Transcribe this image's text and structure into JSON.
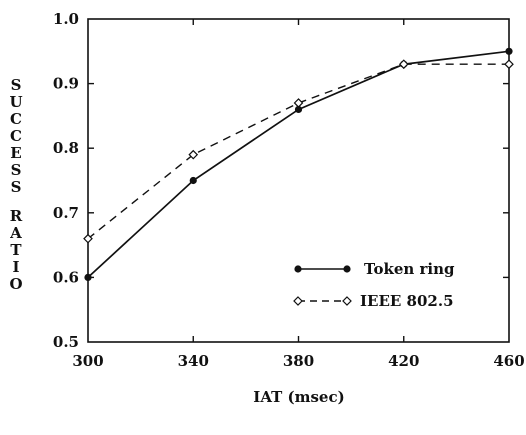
{
  "chart_data": {
    "type": "line",
    "xlabel": "IAT (msec)",
    "ylabel": "SUCCESS RATIO",
    "xlim": [
      300,
      460
    ],
    "ylim": [
      0.5,
      1.0
    ],
    "xticks": [
      "300",
      "340",
      "380",
      "420",
      "460"
    ],
    "yticks": [
      "0.5",
      "0.6",
      "0.7",
      "0.8",
      "0.9",
      "1.0"
    ],
    "x": [
      300,
      340,
      380,
      420,
      460
    ],
    "series": [
      {
        "name": "Token ring",
        "values": [
          0.6,
          0.75,
          0.86,
          0.93,
          0.95
        ],
        "style": "solid",
        "marker": "filled-circle"
      },
      {
        "name": "IEEE 802.5",
        "values": [
          0.66,
          0.79,
          0.87,
          0.93,
          0.93
        ],
        "style": "dashed",
        "marker": "open-diamond"
      }
    ],
    "legend_position": "lower-right",
    "grid": false
  }
}
